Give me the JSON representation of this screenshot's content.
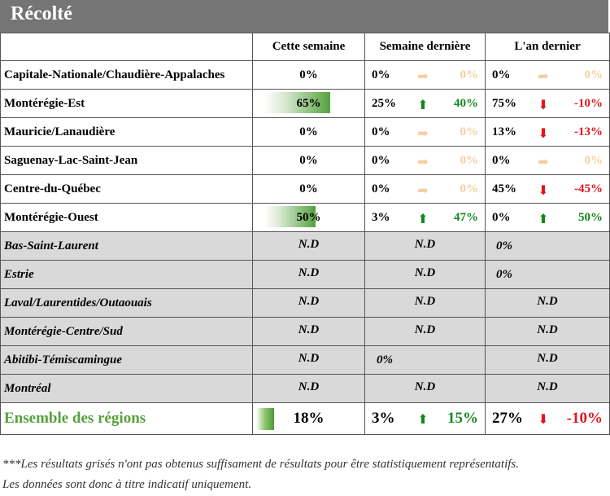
{
  "title": "Récolté",
  "columns": [
    "",
    "Cette semaine",
    "Semaine dernière",
    "L'an dernier"
  ],
  "rows": [
    {
      "region": "Capitale-Nationale/Chaudière-Appalaches",
      "grey": false,
      "week": "0%",
      "bar": 0,
      "last_week": "0%",
      "lw_trend": "flat",
      "lw_diff": "0%",
      "last_year": "0%",
      "ly_trend": "flat",
      "ly_diff": "0%"
    },
    {
      "region": "Montérégie-Est",
      "grey": false,
      "week": "65%",
      "bar": 0.65,
      "last_week": "25%",
      "lw_trend": "up",
      "lw_diff": "40%",
      "last_year": "75%",
      "ly_trend": "down",
      "ly_diff": "-10%"
    },
    {
      "region": "Mauricie/Lanaudière",
      "grey": false,
      "week": "0%",
      "bar": 0,
      "last_week": "0%",
      "lw_trend": "flat",
      "lw_diff": "0%",
      "last_year": "13%",
      "ly_trend": "down",
      "ly_diff": "-13%"
    },
    {
      "region": "Saguenay-Lac-Saint-Jean",
      "grey": false,
      "week": "0%",
      "bar": 0,
      "last_week": "0%",
      "lw_trend": "flat",
      "lw_diff": "0%",
      "last_year": "0%",
      "ly_trend": "flat",
      "ly_diff": "0%"
    },
    {
      "region": "Centre-du-Québec",
      "grey": false,
      "week": "0%",
      "bar": 0,
      "last_week": "0%",
      "lw_trend": "flat",
      "lw_diff": "0%",
      "last_year": "45%",
      "ly_trend": "down",
      "ly_diff": "-45%"
    },
    {
      "region": "Montérégie-Ouest",
      "grey": false,
      "week": "50%",
      "bar": 0.5,
      "last_week": "3%",
      "lw_trend": "up",
      "lw_diff": "47%",
      "last_year": "0%",
      "ly_trend": "up",
      "ly_diff": "50%"
    },
    {
      "region": "Bas-Saint-Laurent",
      "grey": true,
      "week": "N.D",
      "last_week": "N.D",
      "last_year": "0%"
    },
    {
      "region": "Estrie",
      "grey": true,
      "week": "N.D",
      "last_week": "N.D",
      "last_year": "0%"
    },
    {
      "region": "Laval/Laurentides/Outaouais",
      "grey": true,
      "week": "N.D",
      "last_week": "N.D",
      "last_year": "N.D"
    },
    {
      "region": "Montérégie-Centre/Sud",
      "grey": true,
      "week": "N.D",
      "last_week": "N.D",
      "last_year": "N.D"
    },
    {
      "region": "Abitibi-Témiscamingue",
      "grey": true,
      "week": "N.D",
      "last_week": "0%",
      "last_year": "N.D"
    },
    {
      "region": "Montréal",
      "grey": true,
      "week": "N.D",
      "last_week": "N.D",
      "last_year": "N.D"
    }
  ],
  "total": {
    "region": "Ensemble des régions",
    "week": "18%",
    "last_week": "3%",
    "lw_trend": "up",
    "lw_diff": "15%",
    "last_year": "27%",
    "ly_trend": "down",
    "ly_diff": "-10%"
  },
  "notes": [
    "***Les résultats grisés n'ont pas obtenus suffisament de résultats pour être statistiquement représentatifs.",
    "Les données sont donc à titre indicatif uniquement."
  ],
  "colors": {
    "header_bg": "#757575",
    "grey_row": "#d9d9d9",
    "up": "#12891d",
    "down": "#e2161b",
    "flat": "#f5cfa0",
    "total_label": "#55a13d"
  },
  "icons": {
    "up": "arrow-up-icon",
    "down": "arrow-down-icon",
    "flat": "arrow-right-icon"
  }
}
